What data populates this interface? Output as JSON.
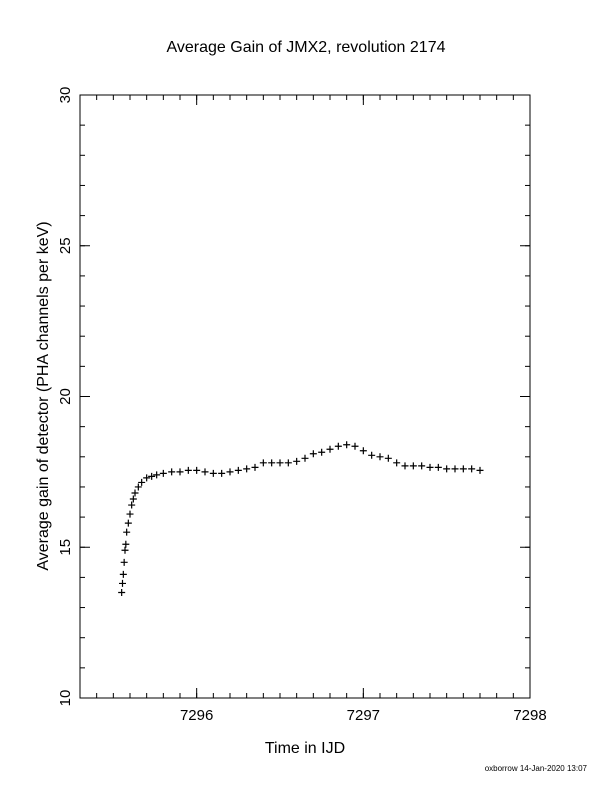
{
  "chart_data": {
    "type": "scatter",
    "title": "Average Gain of JMX2, revolution 2174",
    "xlabel": "Time in IJD",
    "ylabel": "Average gain of detector (PHA channels per keV)",
    "xlim": [
      7295.3,
      7298
    ],
    "ylim": [
      10,
      30
    ],
    "x_ticks": [
      7296,
      7297,
      7298
    ],
    "y_ticks": [
      10,
      15,
      20,
      25,
      30
    ],
    "x_minor_step": 0.1,
    "y_minor_step": 1,
    "grid": false,
    "marker": "+",
    "color": "#000000",
    "series": [
      {
        "x": [
          7295.55,
          7295.555,
          7295.56,
          7295.565,
          7295.57,
          7295.575,
          7295.58,
          7295.59,
          7295.6,
          7295.61,
          7295.62,
          7295.63,
          7295.65,
          7295.67,
          7295.7,
          7295.73,
          7295.76,
          7295.8,
          7295.85,
          7295.9,
          7295.95,
          7296.0,
          7296.05,
          7296.1,
          7296.15,
          7296.2,
          7296.25,
          7296.3,
          7296.35,
          7296.4,
          7296.45,
          7296.5,
          7296.55,
          7296.6,
          7296.65,
          7296.7,
          7296.75,
          7296.8,
          7296.85,
          7296.9,
          7296.95,
          7297.0,
          7297.05,
          7297.1,
          7297.15,
          7297.2,
          7297.25,
          7297.3,
          7297.35,
          7297.4,
          7297.45,
          7297.5,
          7297.55,
          7297.6,
          7297.65,
          7297.7
        ],
        "y": [
          13.5,
          13.8,
          14.1,
          14.5,
          14.9,
          15.1,
          15.5,
          15.8,
          16.1,
          16.4,
          16.6,
          16.8,
          17.0,
          17.15,
          17.3,
          17.35,
          17.4,
          17.45,
          17.5,
          17.5,
          17.55,
          17.55,
          17.5,
          17.45,
          17.45,
          17.5,
          17.55,
          17.6,
          17.65,
          17.8,
          17.8,
          17.8,
          17.8,
          17.85,
          17.95,
          18.1,
          18.15,
          18.25,
          18.35,
          18.4,
          18.35,
          18.2,
          18.05,
          18.0,
          17.95,
          17.8,
          17.7,
          17.7,
          17.7,
          17.65,
          17.65,
          17.6,
          17.6,
          17.6,
          17.6,
          17.55
        ]
      }
    ]
  },
  "footer": {
    "credit": "oxborrow 14-Jan-2020 13:07"
  }
}
